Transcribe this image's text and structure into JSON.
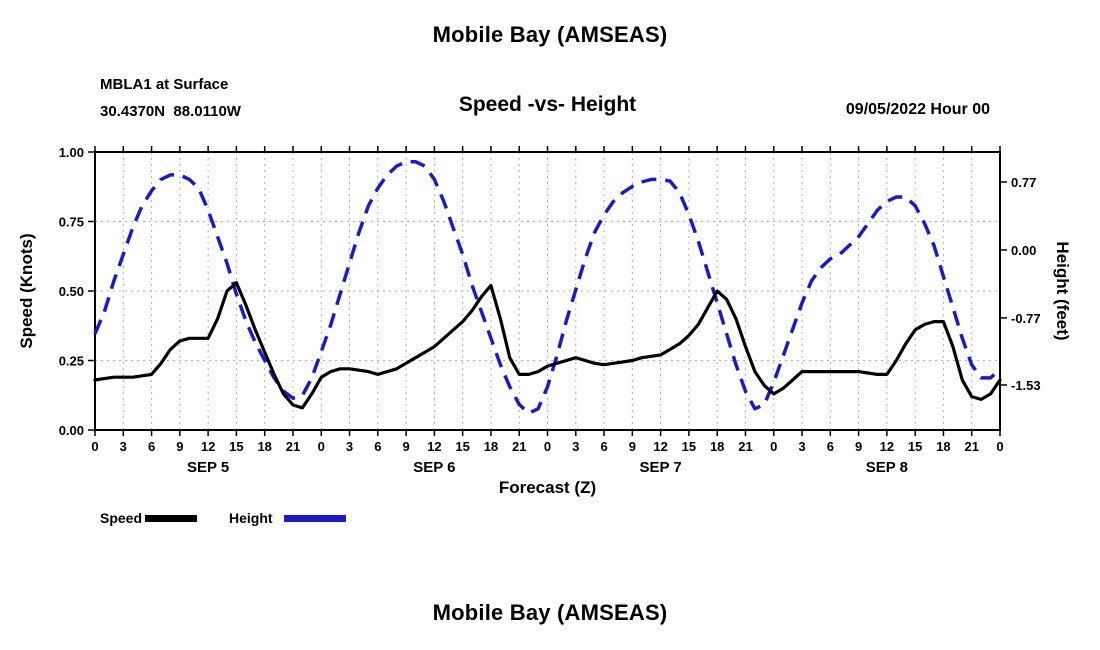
{
  "titles": {
    "top": "Mobile Bay (AMSEAS)",
    "bottom": "Mobile Bay (AMSEAS)"
  },
  "header": {
    "station": "MBLA1 at Surface",
    "coords": "30.4370N  88.0110W",
    "datetime": "09/05/2022 Hour 00"
  },
  "colors": {
    "speed_line": "#000000",
    "height_line": "#1a1acd",
    "grid": "#b3b3b3",
    "frame": "#000000",
    "background": "#ffffff"
  },
  "chart_data": {
    "type": "line",
    "title": "Mobile Bay (AMSEAS)",
    "subtitle": "Speed -vs- Height",
    "x_label": "Forecast (Z)",
    "x_range_hours": [
      0,
      96
    ],
    "x_tick_step_hours": 3,
    "x_hour_tick_labels": [
      "0",
      "3",
      "6",
      "9",
      "12",
      "15",
      "18",
      "21"
    ],
    "day_labels": [
      "SEP 5",
      "SEP 6",
      "SEP 7",
      "SEP 8"
    ],
    "day_label_center_hours": [
      12,
      36,
      60,
      84
    ],
    "left_axis": {
      "label": "Speed (Knots)",
      "range": [
        0,
        1
      ],
      "ticks": [
        0,
        0.25,
        0.5,
        0.75,
        1
      ],
      "tick_labels": [
        "0.00",
        "0.25",
        "0.50",
        "0.75",
        "1.00"
      ]
    },
    "right_axis": {
      "label": "Height (feet)",
      "range": [
        -2.04,
        1.11
      ],
      "ticks": [
        -1.53,
        -0.77,
        0,
        0.77
      ],
      "tick_labels": [
        "-1.53",
        "-0.77",
        "0.00",
        "0.77"
      ]
    },
    "grid": {
      "visible": true,
      "style": "dashed"
    },
    "legend": {
      "position": "bottom-left",
      "entries": [
        {
          "label": "Speed",
          "color": "#000000",
          "style": "solid"
        },
        {
          "label": "Height",
          "color": "#1a1acd",
          "style": "dashed"
        }
      ]
    },
    "x_hours": [
      0,
      1,
      2,
      3,
      4,
      5,
      6,
      7,
      8,
      9,
      10,
      11,
      12,
      13,
      14,
      15,
      16,
      17,
      18,
      19,
      20,
      21,
      22,
      23,
      24,
      25,
      26,
      27,
      28,
      29,
      30,
      31,
      32,
      33,
      34,
      35,
      36,
      37,
      38,
      39,
      40,
      41,
      42,
      43,
      44,
      45,
      46,
      47,
      48,
      49,
      50,
      51,
      52,
      53,
      54,
      55,
      56,
      57,
      58,
      59,
      60,
      61,
      62,
      63,
      64,
      65,
      66,
      67,
      68,
      69,
      70,
      71,
      72,
      73,
      74,
      75,
      76,
      77,
      78,
      79,
      80,
      81,
      82,
      83,
      84,
      85,
      86,
      87,
      88,
      89,
      90,
      91,
      92,
      93,
      94,
      95,
      96
    ],
    "series": [
      {
        "name": "Speed",
        "axis": "left",
        "units": "Knots",
        "line_style": "solid",
        "color": "#000000",
        "values": [
          0.18,
          0.185,
          0.19,
          0.19,
          0.19,
          0.195,
          0.2,
          0.24,
          0.29,
          0.32,
          0.33,
          0.33,
          0.33,
          0.4,
          0.5,
          0.53,
          0.45,
          0.36,
          0.28,
          0.2,
          0.13,
          0.09,
          0.08,
          0.13,
          0.19,
          0.21,
          0.22,
          0.22,
          0.215,
          0.21,
          0.2,
          0.21,
          0.22,
          0.24,
          0.26,
          0.28,
          0.3,
          0.33,
          0.36,
          0.39,
          0.43,
          0.48,
          0.52,
          0.4,
          0.26,
          0.2,
          0.2,
          0.21,
          0.23,
          0.24,
          0.25,
          0.26,
          0.25,
          0.24,
          0.235,
          0.24,
          0.245,
          0.25,
          0.26,
          0.265,
          0.27,
          0.29,
          0.31,
          0.34,
          0.38,
          0.44,
          0.5,
          0.47,
          0.4,
          0.3,
          0.21,
          0.16,
          0.13,
          0.15,
          0.18,
          0.21,
          0.21,
          0.21,
          0.21,
          0.21,
          0.21,
          0.21,
          0.205,
          0.2,
          0.2,
          0.25,
          0.31,
          0.36,
          0.38,
          0.39,
          0.39,
          0.3,
          0.18,
          0.12,
          0.11,
          0.13,
          0.18
        ]
      },
      {
        "name": "Height",
        "axis": "right",
        "units": "feet",
        "line_style": "dashed",
        "color": "#1a1acd",
        "values": [
          -0.95,
          -0.7,
          -0.35,
          -0.05,
          0.25,
          0.5,
          0.67,
          0.8,
          0.85,
          0.85,
          0.8,
          0.7,
          0.45,
          0.15,
          -0.15,
          -0.5,
          -0.8,
          -1.05,
          -1.25,
          -1.45,
          -1.6,
          -1.68,
          -1.65,
          -1.45,
          -1.15,
          -0.85,
          -0.5,
          -0.15,
          0.2,
          0.5,
          0.7,
          0.85,
          0.95,
          1.0,
          1.0,
          0.95,
          0.8,
          0.55,
          0.25,
          -0.05,
          -0.4,
          -0.7,
          -1.0,
          -1.3,
          -1.55,
          -1.75,
          -1.85,
          -1.8,
          -1.55,
          -1.2,
          -0.8,
          -0.45,
          -0.1,
          0.2,
          0.4,
          0.55,
          0.65,
          0.72,
          0.77,
          0.8,
          0.8,
          0.78,
          0.65,
          0.4,
          0.1,
          -0.25,
          -0.6,
          -0.95,
          -1.3,
          -1.6,
          -1.8,
          -1.75,
          -1.5,
          -1.2,
          -0.9,
          -0.6,
          -0.35,
          -0.2,
          -0.1,
          -0.05,
          0.05,
          0.15,
          0.3,
          0.45,
          0.55,
          0.6,
          0.6,
          0.5,
          0.3,
          0.05,
          -0.3,
          -0.65,
          -1.0,
          -1.3,
          -1.45,
          -1.45,
          -1.35
        ]
      }
    ]
  }
}
